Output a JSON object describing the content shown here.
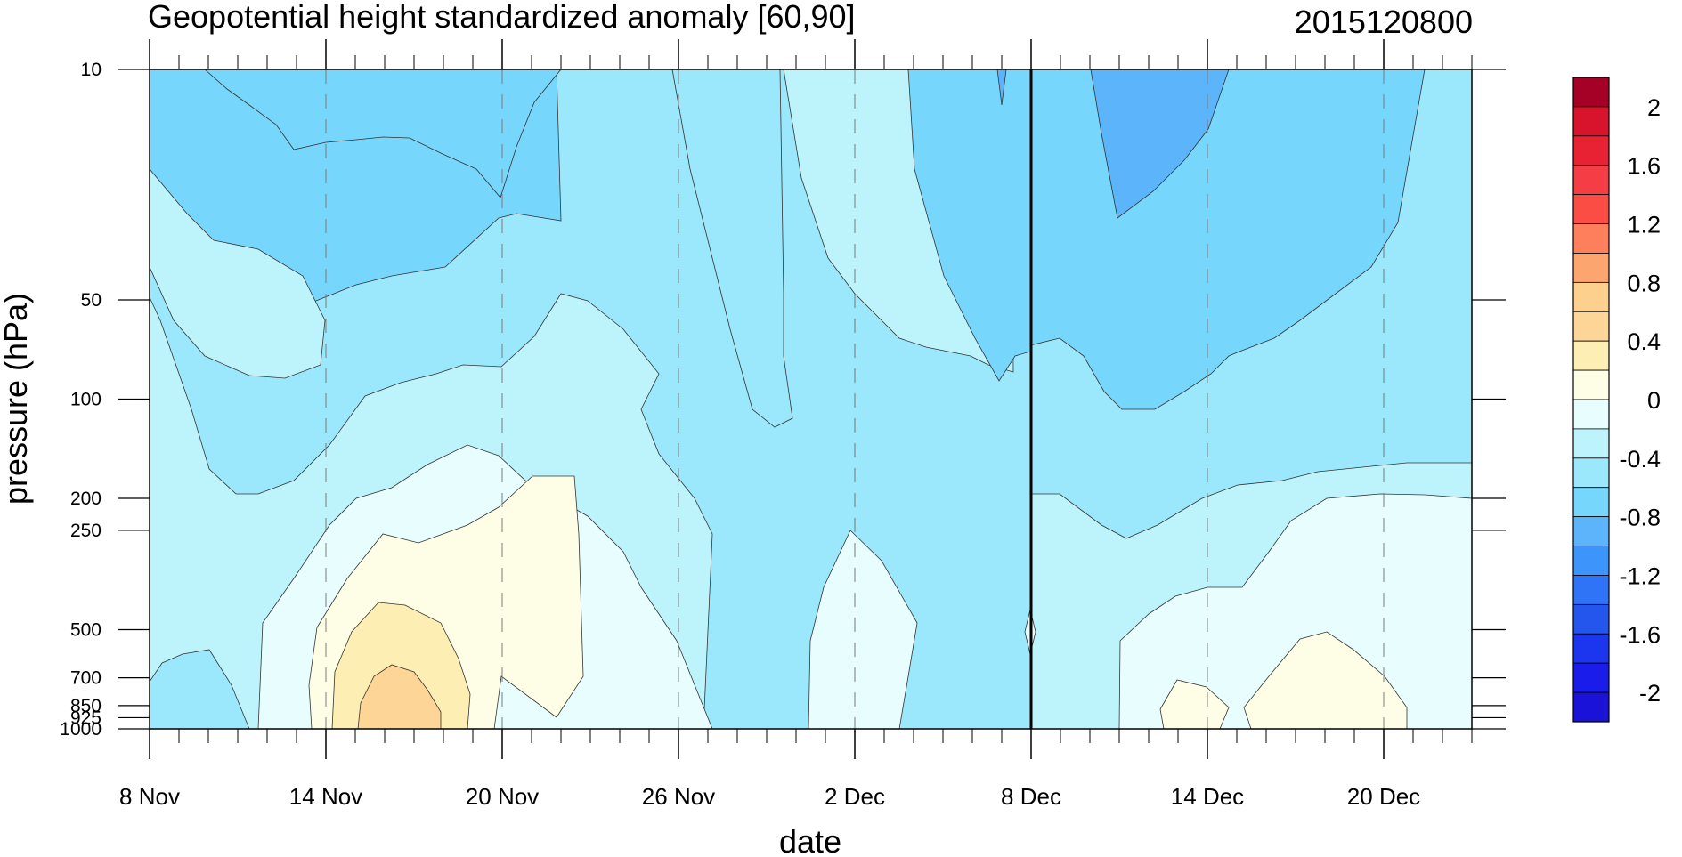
{
  "chart_data": {
    "type": "heatmap",
    "title": "Geopotential height standardized anomaly [60,90]",
    "subtitle_right": "2015120800",
    "xlabel": "date",
    "ylabel": "pressure (hPa)",
    "x_tick_labels": [
      "8 Nov",
      "14 Nov",
      "20 Nov",
      "26 Nov",
      "2 Dec",
      "8 Dec",
      "14 Dec",
      "20 Dec"
    ],
    "x_tick_days": [
      0,
      6,
      12,
      18,
      24,
      30,
      36,
      42
    ],
    "x_range_days": [
      0,
      45
    ],
    "y_tick_labels": [
      "10",
      "50",
      "100",
      "200",
      "250",
      "500",
      "700",
      "850",
      "925",
      "1000"
    ],
    "y_tick_values": [
      10,
      50,
      100,
      200,
      250,
      500,
      700,
      850,
      925,
      1000
    ],
    "y_range": [
      10,
      1000
    ],
    "y_scale": "log",
    "y_reversed": true,
    "vertical_marker_day": 30,
    "colorbar": {
      "labels": [
        "2",
        "1.6",
        "1.2",
        "0.8",
        "0.4",
        "0",
        "-0.4",
        "-0.8",
        "-1.2",
        "-1.6",
        "-2"
      ],
      "levels": [
        2.2,
        2.0,
        1.8,
        1.6,
        1.4,
        1.2,
        1.0,
        0.8,
        0.6,
        0.4,
        0.2,
        0.0,
        -0.2,
        -0.4,
        -0.6,
        -0.8,
        -1.0,
        -1.2,
        -1.4,
        -1.6,
        -1.8,
        -2.0,
        -2.2
      ],
      "colors": [
        "#a50026",
        "#d7142b",
        "#e82133",
        "#f43d45",
        "#fc4d45",
        "#fd7f5c",
        "#fda56e",
        "#fdd08e",
        "#fdd596",
        "#fdeeb3",
        "#fefde5",
        "#e8fdfe",
        "#bdf4fc",
        "#9be7fb",
        "#77d6fb",
        "#5cb4fb",
        "#3d94fa",
        "#2f73f6",
        "#2456ee",
        "#1b36ee",
        "#1a1de9",
        "#1a12d6"
      ]
    },
    "contour_regions": [
      {
        "level": "-0.6 to -0.8",
        "color": "#77d6fb",
        "desc": "upper-left anomaly region near 10 hPa, 9 Nov to 21 Nov"
      },
      {
        "level": "-0.6 to -0.8",
        "color": "#77d6fb",
        "desc": "upper region 2 Dec to 8 Dec"
      },
      {
        "level": "-0.6 to -0.8",
        "color": "#77d6fb",
        "desc": "upper region 8 Dec to 20 Dec"
      },
      {
        "level": "-0.8 to -1.0",
        "color": "#5cb4fb",
        "desc": "core near 10 hPa, 11 Dec to 15 Dec"
      },
      {
        "level": "0 to 0.2",
        "color": "#fefde5",
        "desc": "lower-tropospheric positive anomaly 14 Nov to 23 Nov"
      },
      {
        "level": "0.2 to 0.4",
        "color": "#fdeeb3",
        "desc": "positive core 15 Nov to 18 Nov"
      },
      {
        "level": "0.4 to 0.6",
        "color": "#fdd596",
        "desc": "positive core near 850 hPa, 16 Nov"
      },
      {
        "level": "0 to 0.2",
        "color": "#fefde5",
        "desc": "positive near surface 13 Dec to 15 Dec"
      },
      {
        "level": "0 to 0.2",
        "color": "#fefde5",
        "desc": "positive near surface 16 Dec to 21 Dec"
      }
    ]
  }
}
